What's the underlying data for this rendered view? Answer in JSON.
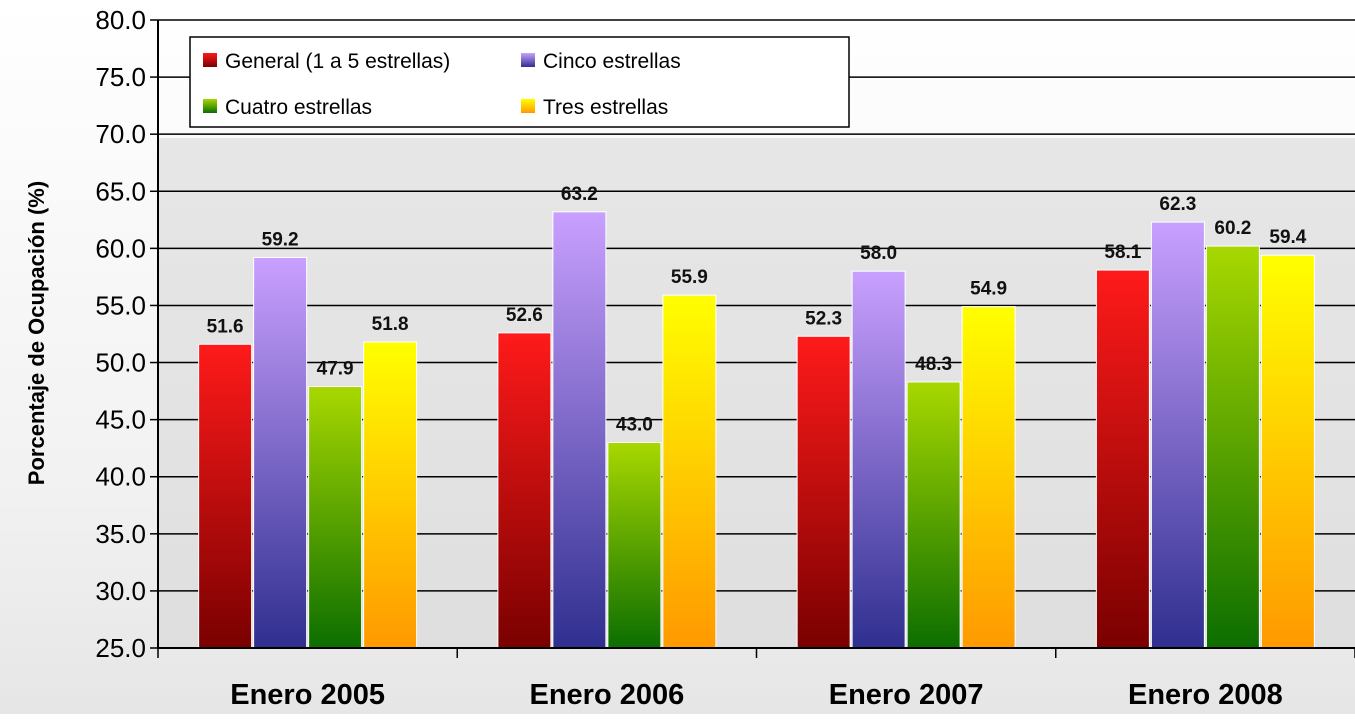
{
  "chart_data": {
    "type": "bar",
    "title": "",
    "xlabel": "",
    "ylabel": "Porcentaje de Ocupación (%)",
    "ylim": [
      25.0,
      80.0
    ],
    "ytick_step": 5,
    "yticks": [
      "25.0",
      "30.0",
      "35.0",
      "40.0",
      "45.0",
      "50.0",
      "55.0",
      "60.0",
      "65.0",
      "70.0",
      "75.0",
      "80.0"
    ],
    "categories": [
      "Enero 2005",
      "Enero 2006",
      "Enero 2007",
      "Enero 2008"
    ],
    "series": [
      {
        "name": "General (1 a 5 estrellas)",
        "values": [
          51.6,
          52.6,
          52.3,
          58.1
        ],
        "color_top": "#ff1a1a",
        "color_bottom": "#7a0000"
      },
      {
        "name": "Cinco estrellas",
        "values": [
          59.2,
          63.2,
          58.0,
          62.3
        ],
        "color_top": "#c9a0ff",
        "color_bottom": "#2f2f8f"
      },
      {
        "name": "Cuatro estrellas",
        "values": [
          47.9,
          43.0,
          48.3,
          60.2
        ],
        "color_top": "#a8d800",
        "color_bottom": "#0c6e00"
      },
      {
        "name": "Tres estrellas",
        "values": [
          51.8,
          55.9,
          54.9,
          59.4
        ],
        "color_top": "#ffff00",
        "color_bottom": "#ff9900"
      }
    ],
    "grid": true,
    "legend": "top-left",
    "data_labels": true
  }
}
